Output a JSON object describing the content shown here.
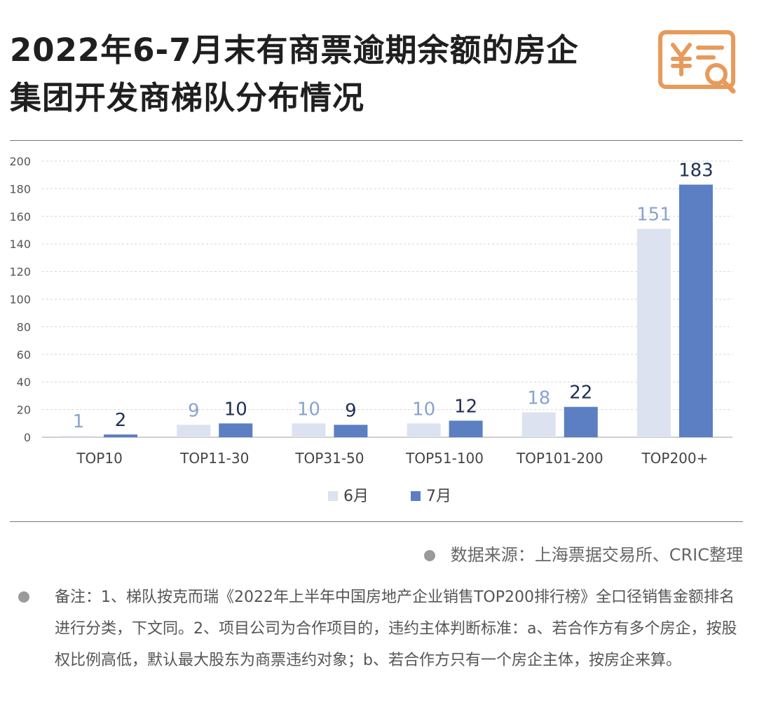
{
  "title_lines": [
    "2022年6-7月末有商票逾期余额的房企",
    "集团开发商梯队分布情况"
  ],
  "logo_icon": "yen-document-search-icon",
  "chart_data": {
    "type": "bar",
    "categories": [
      "TOP10",
      "TOP11-30",
      "TOP31-50",
      "TOP51-100",
      "TOP101-200",
      "TOP200+"
    ],
    "series": [
      {
        "name": "6月",
        "values": [
          1,
          9,
          10,
          10,
          18,
          151
        ],
        "color": "#dce2f0",
        "label_color": "#8aa3cf"
      },
      {
        "name": "7月",
        "values": [
          2,
          10,
          9,
          12,
          22,
          183
        ],
        "color": "#5b7fc2",
        "label_color": "#1f3153"
      }
    ],
    "y_ticks": [
      "0",
      "20",
      "40",
      "60",
      "80",
      "100",
      "120",
      "140",
      "160",
      "180",
      "200"
    ],
    "ylim": [
      0,
      200
    ],
    "grid": true,
    "legend_position": "bottom-center"
  },
  "source_text": "数据来源：上海票据交易所、CRIC整理",
  "note_text": "备注：1、梯队按克而瑞《2022年上半年中国房地产企业销售TOP200排行榜》全口径销售金额排名进行分类，下文同。2、项目公司为合作项目的，违约主体判断标准：a、若合作方有多个房企，按股权比例高低，默认最大股东为商票违约对象；b、若合作方只有一个房企主体，按房企来算。"
}
